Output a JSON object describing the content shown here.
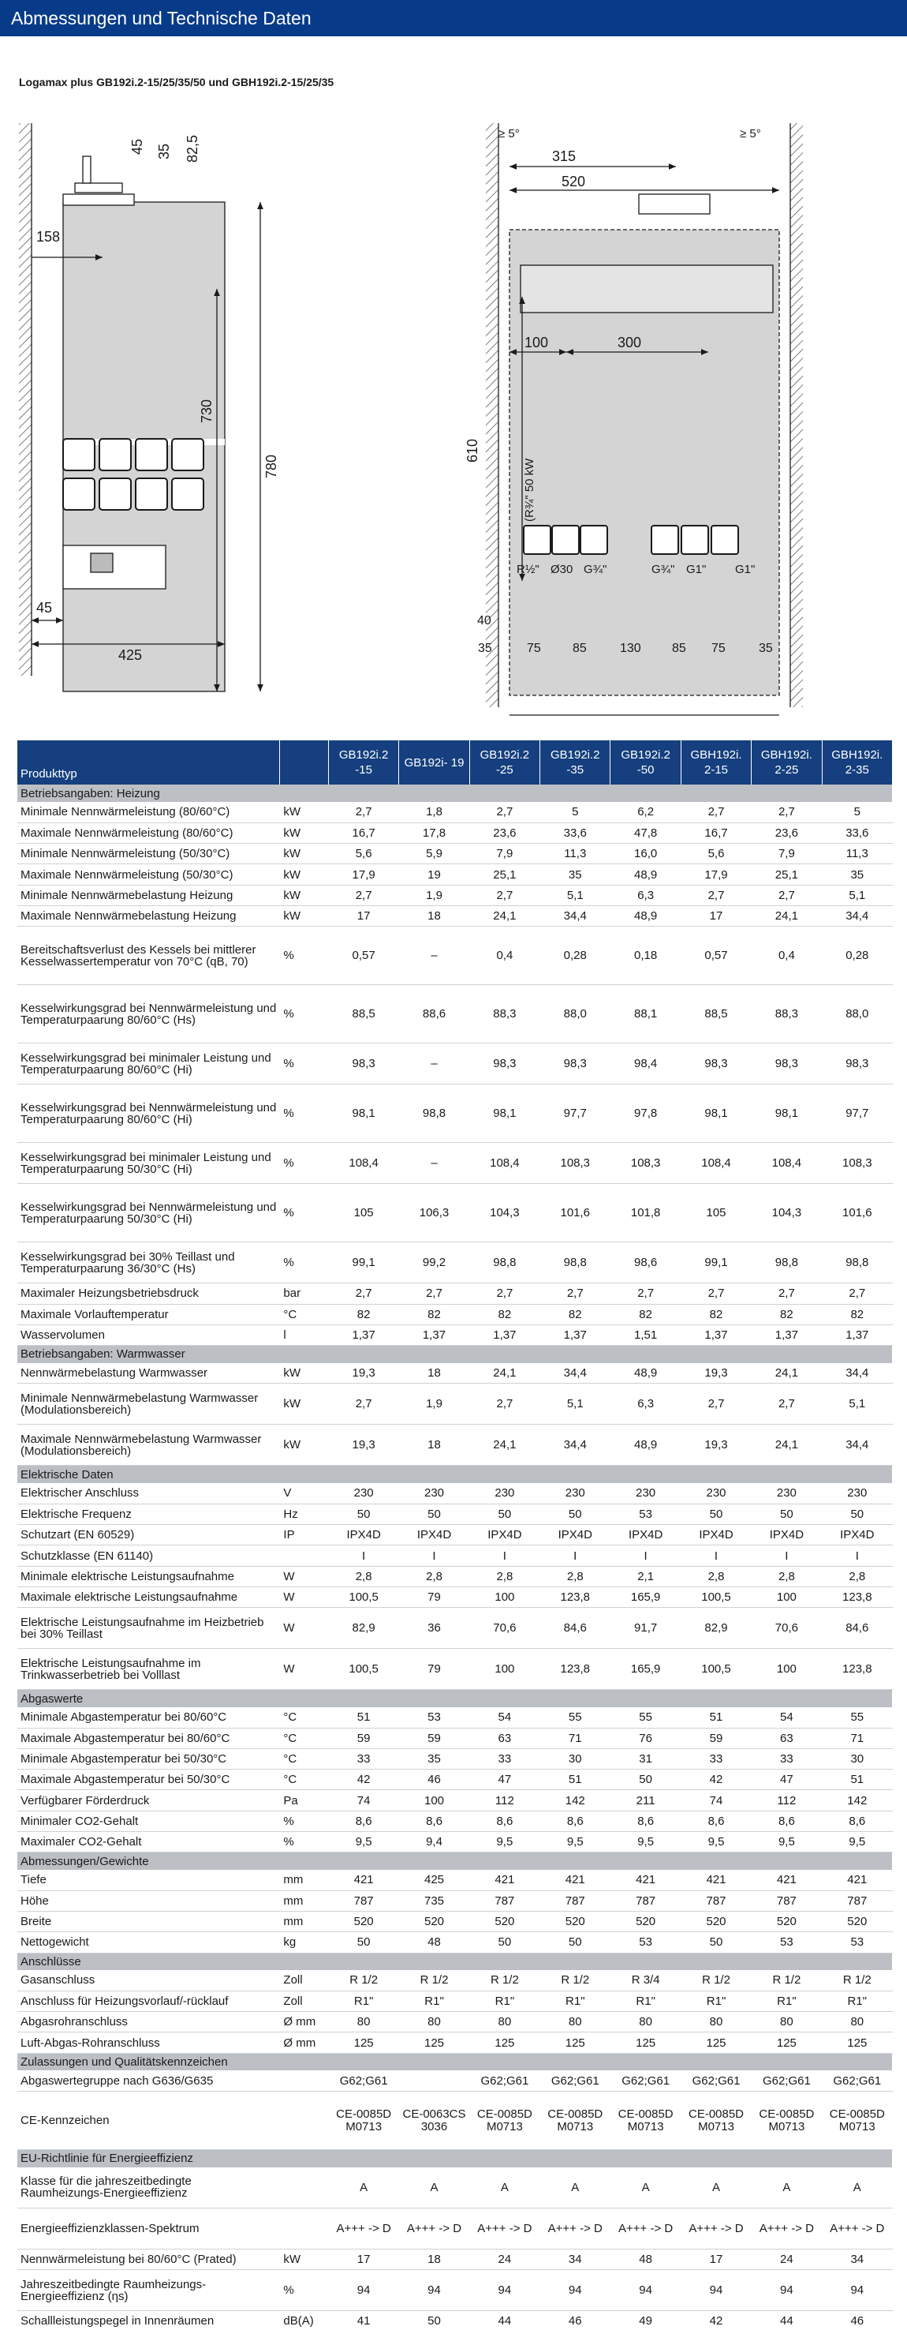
{
  "page": {
    "title": "Abmessungen und Technische Daten",
    "subtitle": "Logamax plus GB192i.2-15/25/35/50 und GBH192i.2-15/25/35"
  },
  "drawing": {
    "left": {
      "dims": [
        "45",
        "35",
        "82,5",
        "158",
        "730",
        "780",
        "45",
        "425"
      ]
    },
    "right": {
      "dims": [
        "≥ 5°",
        "315",
        "520",
        "≥ 5°",
        "100",
        "300",
        "610",
        "(R¾\" 50 kW",
        "R½\"",
        "Ø30",
        "G¾\"",
        "G¾\"",
        "G1\"",
        "G1\"",
        "40",
        "35",
        "75",
        "85",
        "130",
        "85",
        "75",
        "35"
      ]
    }
  },
  "table": {
    "columns": [
      "Produkttyp",
      "",
      "GB192i.2 -15",
      "GB192i- 19",
      "GB192i.2 -25",
      "GB192i.2 -35",
      "GB192i.2 -50",
      "GBH192i. 2-15",
      "GBH192i. 2-25",
      "GBH192i. 2-35"
    ],
    "sections": [
      {
        "title": "Betriebsangaben: Heizung",
        "rows": [
          {
            "n": "Minimale Nennwärmeleistung (80/60°C)",
            "u": "kW",
            "v": [
              "2,7",
              "1,8",
              "2,7",
              "5",
              "6,2",
              "2,7",
              "2,7",
              "5"
            ]
          },
          {
            "n": "Maximale Nennwärmeleistung (80/60°C)",
            "u": "kW",
            "v": [
              "16,7",
              "17,8",
              "23,6",
              "33,6",
              "47,8",
              "16,7",
              "23,6",
              "33,6"
            ]
          },
          {
            "n": "Minimale Nennwärmeleistung (50/30°C)",
            "u": "kW",
            "v": [
              "5,6",
              "5,9",
              "7,9",
              "11,3",
              "16,0",
              "5,6",
              "7,9",
              "11,3"
            ]
          },
          {
            "n": "Maximale Nennwärmeleistung (50/30°C)",
            "u": "kW",
            "v": [
              "17,9",
              "19",
              "25,1",
              "35",
              "48,9",
              "17,9",
              "25,1",
              "35"
            ]
          },
          {
            "n": "Minimale Nennwärmebelastung Heizung",
            "u": "kW",
            "v": [
              "2,7",
              "1,9",
              "2,7",
              "5,1",
              "6,3",
              "2,7",
              "2,7",
              "5,1"
            ]
          },
          {
            "n": "Maximale Nennwärmebelastung Heizung",
            "u": "kW",
            "v": [
              "17",
              "18",
              "24,1",
              "34,4",
              "48,9",
              "17",
              "24,1",
              "34,4"
            ]
          },
          {
            "n": "Bereitschaftsverlust des Kessels bei mittlerer Kesselwassertemperatur von 70°C (qB, 70)",
            "u": "%",
            "v": [
              "0,57",
              "–",
              "0,4",
              "0,28",
              "0,18",
              "0,57",
              "0,4",
              "0,28"
            ],
            "h": 3
          },
          {
            "n": "Kesselwirkungsgrad bei Nennwärmeleistung und Temperaturpaarung 80/60°C (Hs)",
            "u": "%",
            "v": [
              "88,5",
              "88,6",
              "88,3",
              "88,0",
              "88,1",
              "88,5",
              "88,3",
              "88,0"
            ],
            "h": 3
          },
          {
            "n": "Kesselwirkungsgrad bei minimaler Leistung und Temperaturpaarung 80/60°C (Hi)",
            "u": "%",
            "v": [
              "98,3",
              "–",
              "98,3",
              "98,3",
              "98,4",
              "98,3",
              "98,3",
              "98,3"
            ],
            "h": 2
          },
          {
            "n": "Kesselwirkungsgrad bei Nennwärmeleistung und Temperaturpaarung 80/60°C (Hi)",
            "u": "%",
            "v": [
              "98,1",
              "98,8",
              "98,1",
              "97,7",
              "97,8",
              "98,1",
              "98,1",
              "97,7"
            ],
            "h": 3
          },
          {
            "n": "Kesselwirkungsgrad bei minimaler Leistung und Temperaturpaarung 50/30°C (Hi)",
            "u": "%",
            "v": [
              "108,4",
              "–",
              "108,4",
              "108,3",
              "108,3",
              "108,4",
              "108,4",
              "108,3"
            ],
            "h": 2
          },
          {
            "n": "Kesselwirkungsgrad bei Nennwärmeleistung und Temperaturpaarung 50/30°C (Hi)",
            "u": "%",
            "v": [
              "105",
              "106,3",
              "104,3",
              "101,6",
              "101,8",
              "105",
              "104,3",
              "101,6"
            ],
            "h": 3
          },
          {
            "n": "Kesselwirkungsgrad bei 30% Teillast und Temperaturpaarung 36/30°C (Hs)",
            "u": "%",
            "v": [
              "99,1",
              "99,2",
              "98,8",
              "98,8",
              "98,6",
              "99,1",
              "98,8",
              "98,8"
            ],
            "h": 2
          },
          {
            "n": "Maximaler Heizungsbetriebsdruck",
            "u": "bar",
            "v": [
              "2,7",
              "2,7",
              "2,7",
              "2,7",
              "2,7",
              "2,7",
              "2,7",
              "2,7"
            ]
          },
          {
            "n": "Maximale Vorlauftemperatur",
            "u": "°C",
            "v": [
              "82",
              "82",
              "82",
              "82",
              "82",
              "82",
              "82",
              "82"
            ]
          },
          {
            "n": "Wasservolumen",
            "u": "l",
            "v": [
              "1,37",
              "1,37",
              "1,37",
              "1,37",
              "1,51",
              "1,37",
              "1,37",
              "1,37"
            ]
          }
        ]
      },
      {
        "title": "Betriebsangaben: Warmwasser",
        "rows": [
          {
            "n": "Nennwärmebelastung Warmwasser",
            "u": "kW",
            "v": [
              "19,3",
              "18",
              "24,1",
              "34,4",
              "48,9",
              "19,3",
              "24,1",
              "34,4"
            ]
          },
          {
            "n": "Minimale Nennwärmebelastung Warmwasser (Modulationsbereich)",
            "u": "kW",
            "v": [
              "2,7",
              "1,9",
              "2,7",
              "5,1",
              "6,3",
              "2,7",
              "2,7",
              "5,1"
            ],
            "h": 2
          },
          {
            "n": "Maximale Nennwärmebelastung Warmwasser (Modulationsbereich)",
            "u": "kW",
            "v": [
              "19,3",
              "18",
              "24,1",
              "34,4",
              "48,9",
              "19,3",
              "24,1",
              "34,4"
            ],
            "h": 2
          }
        ]
      },
      {
        "title": "Elektrische Daten",
        "rows": [
          {
            "n": "Elektrischer Anschluss",
            "u": "V",
            "v": [
              "230",
              "230",
              "230",
              "230",
              "230",
              "230",
              "230",
              "230"
            ]
          },
          {
            "n": "Elektrische Frequenz",
            "u": "Hz",
            "v": [
              "50",
              "50",
              "50",
              "50",
              "53",
              "50",
              "50",
              "50"
            ]
          },
          {
            "n": "Schutzart (EN 60529)",
            "u": "IP",
            "v": [
              "IPX4D",
              "IPX4D",
              "IPX4D",
              "IPX4D",
              "IPX4D",
              "IPX4D",
              "IPX4D",
              "IPX4D"
            ]
          },
          {
            "n": "Schutzklasse (EN 61140)",
            "u": "",
            "v": [
              "I",
              "I",
              "I",
              "I",
              "I",
              "I",
              "I",
              "I"
            ]
          },
          {
            "n": "Minimale elektrische Leistungsaufnahme",
            "u": "W",
            "v": [
              "2,8",
              "2,8",
              "2,8",
              "2,8",
              "2,1",
              "2,8",
              "2,8",
              "2,8"
            ]
          },
          {
            "n": "Maximale elektrische Leistungsaufnahme",
            "u": "W",
            "v": [
              "100,5",
              "79",
              "100",
              "123,8",
              "165,9",
              "100,5",
              "100",
              "123,8"
            ]
          },
          {
            "n": "Elektrische Leistungsaufnahme im Heizbetrieb bei 30% Teillast",
            "u": "W",
            "v": [
              "82,9",
              "36",
              "70,6",
              "84,6",
              "91,7",
              "82,9",
              "70,6",
              "84,6"
            ],
            "h": 2
          },
          {
            "n": "Elektrische Leistungsaufnahme im Trinkwasserbetrieb bei Volllast",
            "u": "W",
            "v": [
              "100,5",
              "79",
              "100",
              "123,8",
              "165,9",
              "100,5",
              "100",
              "123,8"
            ],
            "h": 2
          }
        ]
      },
      {
        "title": "Abgaswerte",
        "rows": [
          {
            "n": "Minimale Abgastemperatur bei 80/60°C",
            "u": "°C",
            "v": [
              "51",
              "53",
              "54",
              "55",
              "55",
              "51",
              "54",
              "55"
            ]
          },
          {
            "n": "Maximale Abgastemperatur bei 80/60°C",
            "u": "°C",
            "v": [
              "59",
              "59",
              "63",
              "71",
              "76",
              "59",
              "63",
              "71"
            ]
          },
          {
            "n": "Minimale Abgastemperatur bei 50/30°C",
            "u": "°C",
            "v": [
              "33",
              "35",
              "33",
              "30",
              "31",
              "33",
              "33",
              "30"
            ]
          },
          {
            "n": "Maximale Abgastemperatur bei 50/30°C",
            "u": "°C",
            "v": [
              "42",
              "46",
              "47",
              "51",
              "50",
              "42",
              "47",
              "51"
            ]
          },
          {
            "n": "Verfügbarer Förderdruck",
            "u": "Pa",
            "v": [
              "74",
              "100",
              "112",
              "142",
              "211",
              "74",
              "112",
              "142"
            ]
          },
          {
            "n": "Minimaler CO2-Gehalt",
            "u": "%",
            "v": [
              "8,6",
              "8,6",
              "8,6",
              "8,6",
              "8,6",
              "8,6",
              "8,6",
              "8,6"
            ]
          },
          {
            "n": "Maximaler CO2-Gehalt",
            "u": "%",
            "v": [
              "9,5",
              "9,4",
              "9,5",
              "9,5",
              "9,5",
              "9,5",
              "9,5",
              "9,5"
            ]
          }
        ]
      },
      {
        "title": "Abmessungen/Gewichte",
        "rows": [
          {
            "n": "Tiefe",
            "u": "mm",
            "v": [
              "421",
              "425",
              "421",
              "421",
              "421",
              "421",
              "421",
              "421"
            ]
          },
          {
            "n": "Höhe",
            "u": "mm",
            "v": [
              "787",
              "735",
              "787",
              "787",
              "787",
              "787",
              "787",
              "787"
            ]
          },
          {
            "n": "Breite",
            "u": "mm",
            "v": [
              "520",
              "520",
              "520",
              "520",
              "520",
              "520",
              "520",
              "520"
            ]
          },
          {
            "n": "Nettogewicht",
            "u": "kg",
            "v": [
              "50",
              "48",
              "50",
              "50",
              "53",
              "50",
              "53",
              "53"
            ]
          }
        ]
      },
      {
        "title": "Anschlüsse",
        "rows": [
          {
            "n": "Gasanschluss",
            "u": "Zoll",
            "v": [
              "R 1/2",
              "R 1/2",
              "R 1/2",
              "R 1/2",
              "R 3/4",
              "R 1/2",
              "R 1/2",
              "R 1/2"
            ]
          },
          {
            "n": "Anschluss für Heizungsvorlauf/-rücklauf",
            "u": "Zoll",
            "v": [
              "R1\"",
              "R1\"",
              "R1\"",
              "R1\"",
              "R1\"",
              "R1\"",
              "R1\"",
              "R1\""
            ]
          },
          {
            "n": "Abgasrohranschluss",
            "u": "Ø mm",
            "v": [
              "80",
              "80",
              "80",
              "80",
              "80",
              "80",
              "80",
              "80"
            ]
          },
          {
            "n": "Luft-Abgas-Rohranschluss",
            "u": "Ø mm",
            "v": [
              "125",
              "125",
              "125",
              "125",
              "125",
              "125",
              "125",
              "125"
            ]
          }
        ]
      },
      {
        "title": "Zulassungen und Qualitätskennzeichen",
        "rows": [
          {
            "n": "Abgaswertegruppe nach G636/G635",
            "u": "",
            "v": [
              "G62;G61",
              "",
              "G62;G61",
              "G62;G61",
              "G62;G61",
              "G62;G61",
              "G62;G61",
              "G62;G61"
            ]
          },
          {
            "n": "CE-Kennzeichen",
            "u": "",
            "v": [
              "CE-0085DM0713",
              "CE-0063CS3036",
              "CE-0085DM0713",
              "CE-0085DM0713",
              "CE-0085DM0713",
              "CE-0085DM0713",
              "CE-0085DM0713",
              "CE-0085DM0713"
            ],
            "h": 3
          }
        ]
      },
      {
        "title": "EU-Richtlinie für Energieeffizienz",
        "rows": [
          {
            "n": "Klasse für die jahreszeitbedingte Raumheizungs-Energieeffizienz",
            "u": "",
            "v": [
              "A",
              "A",
              "A",
              "A",
              "A",
              "A",
              "A",
              "A"
            ],
            "h": 2
          },
          {
            "n": "Energieeffizienzklassen-Spektrum",
            "u": "",
            "v": [
              "A+++ -> D",
              "A+++ -> D",
              "A+++ -> D",
              "A+++ -> D",
              "A+++ -> D",
              "A+++ -> D",
              "A+++ -> D",
              "A+++ -> D"
            ],
            "h": 2
          },
          {
            "n": "Nennwärmeleistung bei 80/60°C (Prated)",
            "u": "kW",
            "v": [
              "17",
              "18",
              "24",
              "34",
              "48",
              "17",
              "24",
              "34"
            ]
          },
          {
            "n": "Jahreszeitbedingte Raumheizungs-Energieeffizienz (ηs)",
            "u": "%",
            "v": [
              "94",
              "94",
              "94",
              "94",
              "94",
              "94",
              "94",
              "94"
            ],
            "h": 2
          },
          {
            "n": "Schallleistungspegel in Innenräumen",
            "u": "dB(A)",
            "v": [
              "41",
              "50",
              "44",
              "46",
              "49",
              "42",
              "44",
              "46"
            ]
          }
        ]
      }
    ]
  }
}
